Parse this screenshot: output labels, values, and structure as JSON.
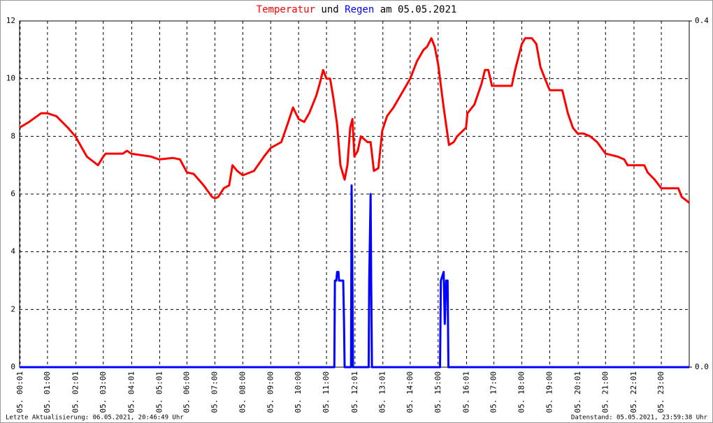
{
  "chart_data": {
    "type": "line",
    "title": [
      "Temperatur",
      "und",
      "Regen",
      "am 05.05.2021"
    ],
    "footer_left": "Letzte Aktualisierung: 06.05.2021, 20:46:49 Uhr",
    "footer_right": "Datenstand: 05.05.2021, 23:59:38 Uhr",
    "xlim": [
      0,
      24
    ],
    "xticks": [
      {
        "value": 0.02,
        "label": "05. 00:01"
      },
      {
        "value": 1,
        "label": "05. 01:00"
      },
      {
        "value": 2.02,
        "label": "05. 02:01"
      },
      {
        "value": 3,
        "label": "05. 03:00"
      },
      {
        "value": 4.02,
        "label": "05. 04:01"
      },
      {
        "value": 5.02,
        "label": "05. 05:01"
      },
      {
        "value": 6,
        "label": "05. 06:00"
      },
      {
        "value": 7,
        "label": "05. 07:00"
      },
      {
        "value": 8,
        "label": "05. 08:00"
      },
      {
        "value": 9,
        "label": "05. 09:00"
      },
      {
        "value": 10,
        "label": "05. 10:00"
      },
      {
        "value": 11,
        "label": "05. 11:00"
      },
      {
        "value": 12.02,
        "label": "05. 12:01"
      },
      {
        "value": 13.02,
        "label": "05. 13:01"
      },
      {
        "value": 14,
        "label": "05. 14:00"
      },
      {
        "value": 15,
        "label": "05. 15:00"
      },
      {
        "value": 16.02,
        "label": "05. 16:01"
      },
      {
        "value": 17,
        "label": "05. 17:00"
      },
      {
        "value": 18,
        "label": "05. 18:00"
      },
      {
        "value": 19,
        "label": "05. 19:00"
      },
      {
        "value": 20.02,
        "label": "05. 20:01"
      },
      {
        "value": 21,
        "label": "05. 21:00"
      },
      {
        "value": 22.02,
        "label": "05. 22:01"
      },
      {
        "value": 23,
        "label": "05. 23:00"
      }
    ],
    "ylim": [
      0,
      12
    ],
    "yticks": [
      0,
      2,
      4,
      6,
      8,
      10,
      12
    ],
    "y2lim": [
      0,
      0.4
    ],
    "y2ticks": [
      {
        "value": 0,
        "label": "0.0"
      },
      {
        "value": 0.4,
        "label": "0.4"
      }
    ],
    "grid": true,
    "series": [
      {
        "name": "Temperatur",
        "color": "#ff0000",
        "x": [
          0,
          0.34,
          0.77,
          1,
          1.32,
          1.73,
          2,
          2.41,
          2.81,
          3,
          3.09,
          3.7,
          3.85,
          4,
          4.71,
          5,
          5.5,
          5.75,
          6,
          6.24,
          6.6,
          6.9,
          7,
          7.12,
          7.32,
          7.51,
          7.63,
          7.8,
          8,
          8.4,
          8.76,
          9,
          9.38,
          9.63,
          9.8,
          10,
          10.2,
          10.38,
          10.63,
          10.75,
          10.88,
          11,
          11.13,
          11.25,
          11.38,
          11.5,
          11.65,
          11.75,
          11.85,
          11.93,
          12,
          12.12,
          12.23,
          12.47,
          12.58,
          12.7,
          12.86,
          13,
          13.17,
          13.4,
          13.64,
          13.76,
          14,
          14.24,
          14.48,
          14.6,
          14.76,
          14.88,
          15,
          15.2,
          15.39,
          15.56,
          15.68,
          16,
          16.05,
          16.3,
          16.55,
          16.68,
          16.8,
          16.93,
          17,
          17.64,
          17.76,
          18,
          18.12,
          18.36,
          18.52,
          18.67,
          18.83,
          19,
          19.38,
          19.45,
          19.65,
          19.83,
          20,
          20.2,
          20.45,
          20.7,
          21,
          21.43,
          21.67,
          21.79,
          22,
          22.39,
          22.51,
          22.76,
          23,
          23.61,
          23.73,
          24
        ],
        "values": [
          8.3,
          8.5,
          8.8,
          8.8,
          8.7,
          8.3,
          8.0,
          7.3,
          7.0,
          7.3,
          7.4,
          7.4,
          7.5,
          7.4,
          7.3,
          7.2,
          7.25,
          7.2,
          6.75,
          6.7,
          6.3,
          5.9,
          5.85,
          5.9,
          6.2,
          6.3,
          7.0,
          6.8,
          6.65,
          6.8,
          7.3,
          7.6,
          7.8,
          8.5,
          9.0,
          8.6,
          8.5,
          8.8,
          9.4,
          9.8,
          10.3,
          10.0,
          10.0,
          9.3,
          8.4,
          7.0,
          6.5,
          7.0,
          8.3,
          8.6,
          7.3,
          7.5,
          8.0,
          7.8,
          7.8,
          6.8,
          6.9,
          8.2,
          8.7,
          9.0,
          9.4,
          9.6,
          10.0,
          10.6,
          11.0,
          11.1,
          11.4,
          11.1,
          10.5,
          9.0,
          7.7,
          7.8,
          8.0,
          8.3,
          8.8,
          9.1,
          9.8,
          10.3,
          10.3,
          9.75,
          9.75,
          9.75,
          10.3,
          11.2,
          11.4,
          11.4,
          11.2,
          10.4,
          10.0,
          9.6,
          9.6,
          9.6,
          8.8,
          8.3,
          8.1,
          8.1,
          8.0,
          7.8,
          7.4,
          7.3,
          7.2,
          7.0,
          7.0,
          7.0,
          6.75,
          6.5,
          6.2,
          6.2,
          5.9,
          5.7
        ]
      },
      {
        "name": "Regen",
        "color": "#0000ff",
        "axis": "y2",
        "x": [
          0,
          11.28,
          11.3,
          11.35,
          11.38,
          11.43,
          11.45,
          11.6,
          11.63,
          11.65,
          11.88,
          11.9,
          11.93,
          11.95,
          12.51,
          12.53,
          12.58,
          12.6,
          12.63,
          15.07,
          15.1,
          15.2,
          15.24,
          15.29,
          15.34,
          15.37,
          24
        ],
        "values": [
          0,
          0,
          0.1,
          0.1,
          0.11,
          0.11,
          0.1,
          0.1,
          0.05,
          0,
          0,
          0.21,
          0.1,
          0,
          0,
          0.1,
          0.2,
          0.1,
          0,
          0,
          0.1,
          0.11,
          0.05,
          0.1,
          0.1,
          0,
          0
        ]
      }
    ]
  }
}
